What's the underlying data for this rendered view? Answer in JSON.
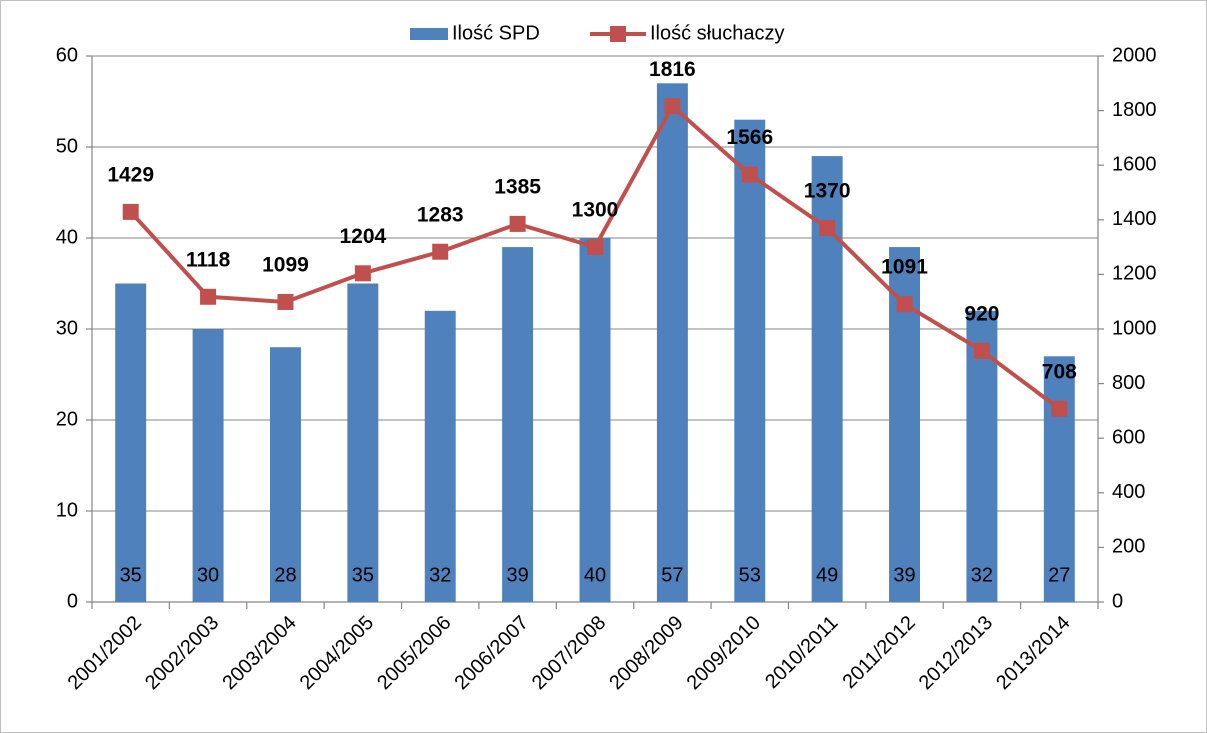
{
  "chart_data": {
    "type": "bar",
    "categories": [
      "2001/2002",
      "2002/2003",
      "2003/2004",
      "2004/2005",
      "2005/2006",
      "2006/2007",
      "2007/2008",
      "2008/2009",
      "2009/2010",
      "2010/2011",
      "2011/2012",
      "2012/2013",
      "2013/2014"
    ],
    "series": [
      {
        "name": "Ilość SPD",
        "type": "bar",
        "color": "#4f81bd",
        "values": [
          35,
          30,
          28,
          35,
          32,
          39,
          40,
          57,
          53,
          49,
          39,
          32,
          27
        ]
      },
      {
        "name": "Ilość słuchaczy",
        "type": "line",
        "axis": "y2",
        "color": "#c0504d",
        "values": [
          1429,
          1118,
          1099,
          1204,
          1283,
          1385,
          1300,
          1816,
          1566,
          1370,
          1091,
          920,
          708
        ]
      }
    ],
    "ylim": [
      0,
      60
    ],
    "yticks": [
      0,
      10,
      20,
      30,
      40,
      50,
      60
    ],
    "y2lim": [
      0,
      2000
    ],
    "y2ticks": [
      0,
      200,
      400,
      600,
      800,
      1000,
      1200,
      1400,
      1600,
      1800,
      2000
    ],
    "grid": true,
    "legend": "top"
  }
}
